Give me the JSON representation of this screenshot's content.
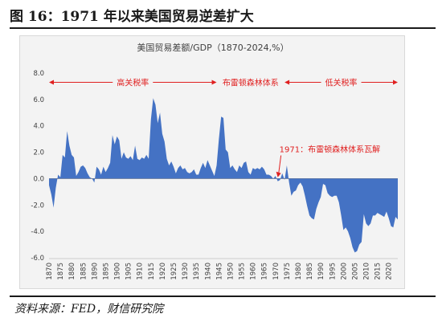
{
  "figure_title": "图 16：1971 年以来美国贸易逆差扩大",
  "source": "资料来源：FED，财信研究院",
  "colors": {
    "area": "#4472c4",
    "annotation": "#e02020",
    "panel": "#f3f3f3"
  },
  "chart_data": {
    "type": "area",
    "title": "美国贸易差额/GDP（1870-2024,%）",
    "xlabel": "",
    "ylabel": "",
    "xlim": [
      1870,
      2024
    ],
    "ylim": [
      -6.0,
      8.0
    ],
    "yticks": [
      8.0,
      6.0,
      4.0,
      2.0,
      0.0,
      -2.0,
      -4.0,
      -6.0
    ],
    "ytick_labels": [
      "8.0",
      "6.0",
      "4.0",
      "2.0",
      "0.0",
      "-2.0",
      "-4.0",
      "-6.0"
    ],
    "xticks": [
      1870,
      1875,
      1880,
      1885,
      1890,
      1895,
      1900,
      1905,
      1910,
      1915,
      1920,
      1925,
      1930,
      1935,
      1940,
      1945,
      1950,
      1955,
      1960,
      1965,
      1970,
      1975,
      1980,
      1985,
      1990,
      1995,
      2000,
      2005,
      2010,
      2015,
      2020
    ],
    "xtick_labels": [
      "1870",
      "1875",
      "1880",
      "1885",
      "1890",
      "1895",
      "1900",
      "1905",
      "1910",
      "1915",
      "1920",
      "1925",
      "1930",
      "1935",
      "1940",
      "1945",
      "1950",
      "1955",
      "1960",
      "1965",
      "1970",
      "1975",
      "1980",
      "1985",
      "1990",
      "1995",
      "2000",
      "2005",
      "2010",
      "2015",
      "2020"
    ],
    "grid": false,
    "regimes": [
      {
        "label": "高关税率",
        "start": 1870,
        "end": 1944
      },
      {
        "label": "布雷顿森林体系",
        "start": 1945,
        "end": 1973
      },
      {
        "label": "低关税率",
        "start": 1974,
        "end": 2024
      }
    ],
    "annotations": [
      {
        "text": "1971：布雷顿森林体系瓦解",
        "x": 1971
      }
    ],
    "x": [
      1870,
      1871,
      1872,
      1873,
      1874,
      1875,
      1876,
      1877,
      1878,
      1879,
      1880,
      1881,
      1882,
      1883,
      1884,
      1885,
      1886,
      1887,
      1888,
      1889,
      1890,
      1891,
      1892,
      1893,
      1894,
      1895,
      1896,
      1897,
      1898,
      1899,
      1900,
      1901,
      1902,
      1903,
      1904,
      1905,
      1906,
      1907,
      1908,
      1909,
      1910,
      1911,
      1912,
      1913,
      1914,
      1915,
      1916,
      1917,
      1918,
      1919,
      1920,
      1921,
      1922,
      1923,
      1924,
      1925,
      1926,
      1927,
      1928,
      1929,
      1930,
      1931,
      1932,
      1933,
      1934,
      1935,
      1936,
      1937,
      1938,
      1939,
      1940,
      1941,
      1942,
      1943,
      1944,
      1945,
      1946,
      1947,
      1948,
      1949,
      1950,
      1951,
      1952,
      1953,
      1954,
      1955,
      1956,
      1957,
      1958,
      1959,
      1960,
      1961,
      1962,
      1963,
      1964,
      1965,
      1966,
      1967,
      1968,
      1969,
      1970,
      1971,
      1972,
      1973,
      1974,
      1975,
      1976,
      1977,
      1978,
      1979,
      1980,
      1981,
      1982,
      1983,
      1984,
      1985,
      1986,
      1987,
      1988,
      1989,
      1990,
      1991,
      1992,
      1993,
      1994,
      1995,
      1996,
      1997,
      1998,
      1999,
      2000,
      2001,
      2002,
      2003,
      2004,
      2005,
      2006,
      2007,
      2008,
      2009,
      2010,
      2011,
      2012,
      2013,
      2014,
      2015,
      2016,
      2017,
      2018,
      2019,
      2020,
      2021,
      2022,
      2023,
      2024
    ],
    "values": [
      -0.5,
      -1.2,
      -2.2,
      -0.7,
      0.3,
      0.1,
      1.8,
      1.6,
      3.6,
      2.5,
      1.8,
      1.6,
      0.2,
      0.5,
      0.9,
      1.0,
      0.8,
      0.4,
      0.1,
      0.0,
      -0.3,
      0.9,
      0.7,
      0.3,
      0.9,
      0.5,
      0.8,
      1.2,
      3.3,
      2.6,
      3.2,
      2.9,
      1.5,
      2.0,
      1.6,
      1.5,
      1.7,
      1.4,
      2.5,
      1.5,
      1.4,
      1.6,
      1.5,
      1.8,
      1.5,
      4.5,
      6.1,
      5.6,
      4.2,
      5.0,
      3.4,
      2.8,
      1.5,
      1.0,
      1.3,
      0.9,
      0.4,
      0.8,
      1.0,
      0.7,
      0.8,
      0.5,
      0.4,
      0.5,
      0.7,
      0.3,
      0.3,
      0.8,
      1.2,
      0.8,
      1.4,
      1.0,
      0.6,
      0.2,
      1.0,
      3.0,
      4.7,
      4.6,
      2.2,
      2.0,
      0.8,
      1.0,
      0.7,
      0.5,
      1.0,
      0.8,
      1.2,
      1.3,
      0.5,
      0.3,
      0.8,
      0.7,
      0.8,
      0.7,
      0.9,
      0.7,
      0.3,
      0.3,
      0.2,
      0.0,
      0.2,
      -0.2,
      -0.1,
      0.4,
      -0.1,
      1.0,
      -0.3,
      -1.3,
      -1.0,
      -0.9,
      -0.5,
      -0.3,
      -0.6,
      -1.3,
      -2.1,
      -2.8,
      -3.0,
      -3.1,
      -2.3,
      -1.8,
      -1.4,
      -0.4,
      -0.5,
      -1.1,
      -1.3,
      -1.4,
      -1.3,
      -1.3,
      -1.8,
      -2.8,
      -3.9,
      -3.7,
      -4.0,
      -4.5,
      -5.2,
      -5.6,
      -5.5,
      -5.0,
      -4.8,
      -2.7,
      -3.4,
      -3.6,
      -3.4,
      -2.8,
      -2.8,
      -2.6,
      -2.7,
      -2.8,
      -2.9,
      -2.5,
      -3.0,
      -3.6,
      -3.7,
      -2.9,
      -3.1
    ]
  }
}
